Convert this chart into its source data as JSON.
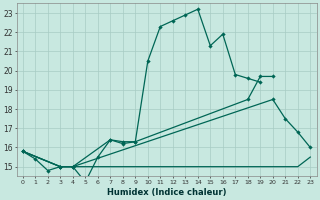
{
  "xlabel": "Humidex (Indice chaleur)",
  "bg_color": "#c8e8e0",
  "grid_color": "#a8ccc4",
  "line_color": "#006655",
  "xlim": [
    -0.5,
    23.5
  ],
  "ylim": [
    14.5,
    23.5
  ],
  "xtick_labels": [
    "0",
    "1",
    "2",
    "3",
    "4",
    "5",
    "6",
    "7",
    "8",
    "9",
    "10",
    "11",
    "12",
    "13",
    "14",
    "15",
    "16",
    "17",
    "18",
    "19",
    "20",
    "21",
    "22",
    "23"
  ],
  "ytick_labels": [
    "15",
    "16",
    "17",
    "18",
    "19",
    "20",
    "21",
    "22",
    "23"
  ],
  "ytick_vals": [
    15,
    16,
    17,
    18,
    19,
    20,
    21,
    22,
    23
  ],
  "line1_x": [
    0,
    1,
    2,
    3,
    4,
    5,
    6,
    7,
    8,
    9,
    10,
    11,
    12,
    13,
    14,
    15,
    16,
    17,
    18,
    19
  ],
  "line1_y": [
    15.8,
    15.4,
    14.8,
    15.0,
    15.0,
    14.2,
    15.5,
    16.4,
    16.2,
    16.3,
    20.5,
    22.3,
    22.6,
    22.9,
    23.2,
    21.3,
    21.9,
    19.8,
    19.6,
    19.4
  ],
  "line2_x": [
    0,
    3,
    4,
    7,
    8,
    9,
    18,
    19,
    20
  ],
  "line2_y": [
    15.8,
    15.0,
    15.0,
    16.4,
    16.3,
    16.3,
    18.5,
    19.7,
    19.7
  ],
  "line3_x": [
    0,
    3,
    4,
    15,
    16,
    17,
    18,
    19,
    20,
    21,
    22,
    23
  ],
  "line3_y": [
    15.8,
    15.0,
    15.0,
    15.0,
    15.0,
    15.0,
    15.0,
    15.0,
    15.0,
    15.0,
    15.0,
    15.5
  ],
  "line4_x": [
    0,
    3,
    4,
    20,
    21,
    22,
    23
  ],
  "line4_y": [
    15.8,
    15.0,
    15.0,
    18.5,
    17.5,
    16.8,
    16.0
  ]
}
